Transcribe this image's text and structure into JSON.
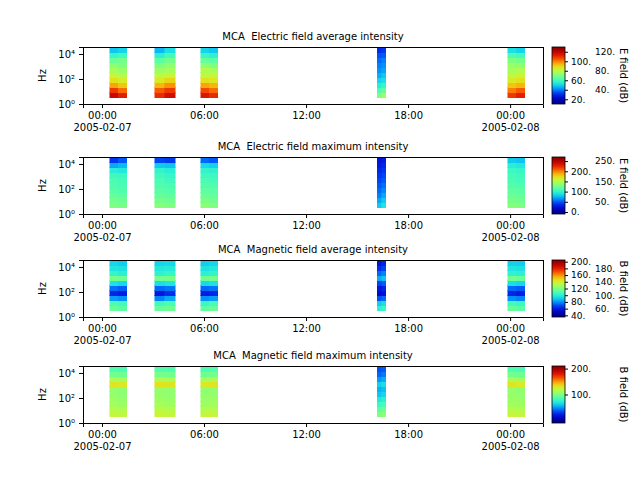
{
  "chart_data": [
    {
      "type": "heatmap",
      "title": "MCA  Electric field average intensity",
      "y_label": "Hz",
      "log": "y",
      "xlim": [
        "2005-02-06T22:53",
        "2005-02-08T01:56"
      ],
      "xticks": [
        {
          "value": "2005-02-07T00:00",
          "label": "00:00\n2005-02-07"
        },
        {
          "value": "2005-02-07T06:00",
          "label": "06:00"
        },
        {
          "value": "2005-02-07T12:00",
          "label": "12:00"
        },
        {
          "value": "2005-02-07T18:00",
          "label": "18:00"
        },
        {
          "value": "2005-02-08T00:00",
          "label": "00:00\n2005-02-08"
        }
      ],
      "ylim": [
        1,
        36000
      ],
      "yticks": [
        {
          "value": 1,
          "label": "10⁰"
        },
        {
          "value": 100,
          "label": "10²"
        },
        {
          "value": 10000,
          "label": "10⁴"
        }
      ],
      "x_bins": [
        [
          "2005-02-07T00:28",
          "2005-02-07T00:58"
        ],
        [
          "2005-02-07T00:58",
          "2005-02-07T01:28"
        ],
        [
          "2005-02-07T03:06",
          "2005-02-07T03:42"
        ],
        [
          "2005-02-07T03:42",
          "2005-02-07T04:18"
        ],
        [
          "2005-02-07T05:48",
          "2005-02-07T06:18"
        ],
        [
          "2005-02-07T06:18",
          "2005-02-07T06:48"
        ],
        [
          "2005-02-07T16:12",
          "2005-02-07T16:27"
        ],
        [
          "2005-02-07T16:27",
          "2005-02-07T16:42"
        ],
        [
          "2005-02-07T23:52",
          "2005-02-08T00:22"
        ],
        [
          "2005-02-08T00:22",
          "2005-02-08T00:52"
        ]
      ],
      "y_bins": [
        3.16,
        7.94,
        20,
        50.1,
        126,
        316,
        794,
        2000,
        5010,
        12600,
        31600
      ],
      "cells": [
        [
          118,
          108,
          96,
          88,
          82,
          76,
          72,
          66,
          58,
          48
        ],
        [
          112,
          102,
          92,
          85,
          78,
          74,
          70,
          68,
          60,
          50
        ],
        [
          110,
          104,
          94,
          86,
          80,
          74,
          70,
          64,
          56,
          46
        ],
        [
          116,
          108,
          98,
          90,
          82,
          76,
          72,
          68,
          60,
          52
        ],
        [
          114,
          106,
          96,
          88,
          80,
          78,
          72,
          66,
          58,
          50
        ],
        [
          110,
          102,
          94,
          86,
          82,
          76,
          70,
          64,
          56,
          48
        ],
        [
          70,
          62,
          55,
          50,
          45,
          42,
          40,
          38,
          35,
          30
        ],
        [
          75,
          65,
          58,
          52,
          48,
          44,
          42,
          40,
          36,
          32
        ],
        [
          108,
          100,
          92,
          86,
          80,
          76,
          74,
          70,
          62,
          52
        ],
        [
          112,
          104,
          94,
          88,
          82,
          78,
          72,
          68,
          60,
          50
        ]
      ],
      "colorbar": {
        "label": "E field (dB)",
        "range": [
          10,
          130
        ],
        "ticks": [
          {
            "value": 20,
            "label": "20."
          },
          {
            "value": 40,
            "label": "40."
          },
          {
            "value": 60,
            "label": "60."
          },
          {
            "value": 80,
            "label": "80."
          },
          {
            "value": 100,
            "label": "100."
          },
          {
            "value": 120,
            "label": "120."
          }
        ]
      }
    },
    {
      "type": "heatmap",
      "title": "MCA  Electric field maximum intensity",
      "y_label": "Hz",
      "log": "y",
      "xlim": [
        "2005-02-06T22:53",
        "2005-02-08T01:56"
      ],
      "xticks": [
        {
          "value": "2005-02-07T00:00",
          "label": "00:00\n2005-02-07"
        },
        {
          "value": "2005-02-07T06:00",
          "label": "06:00"
        },
        {
          "value": "2005-02-07T12:00",
          "label": "12:00"
        },
        {
          "value": "2005-02-07T18:00",
          "label": "18:00"
        },
        {
          "value": "2005-02-08T00:00",
          "label": "00:00\n2005-02-08"
        }
      ],
      "ylim": [
        1,
        36000
      ],
      "yticks": [
        {
          "value": 1,
          "label": "10⁰"
        },
        {
          "value": 100,
          "label": "10²"
        },
        {
          "value": 10000,
          "label": "10⁴"
        }
      ],
      "x_bins": [
        [
          "2005-02-07T00:28",
          "2005-02-07T00:58"
        ],
        [
          "2005-02-07T00:58",
          "2005-02-07T01:28"
        ],
        [
          "2005-02-07T03:06",
          "2005-02-07T03:42"
        ],
        [
          "2005-02-07T03:42",
          "2005-02-07T04:18"
        ],
        [
          "2005-02-07T05:48",
          "2005-02-07T06:18"
        ],
        [
          "2005-02-07T06:18",
          "2005-02-07T06:48"
        ],
        [
          "2005-02-07T16:12",
          "2005-02-07T16:27"
        ],
        [
          "2005-02-07T16:27",
          "2005-02-07T16:42"
        ],
        [
          "2005-02-07T23:52",
          "2005-02-08T00:22"
        ],
        [
          "2005-02-08T00:22",
          "2005-02-08T00:52"
        ]
      ],
      "y_bins": [
        3.16,
        7.94,
        20,
        50.1,
        126,
        316,
        794,
        2000,
        5010,
        12600,
        31600
      ],
      "cells": [
        [
          130,
          125,
          120,
          115,
          112,
          110,
          105,
          95,
          70,
          40
        ],
        [
          128,
          122,
          118,
          112,
          110,
          108,
          104,
          92,
          75,
          50
        ],
        [
          132,
          126,
          120,
          116,
          112,
          110,
          106,
          100,
          80,
          45
        ],
        [
          130,
          124,
          118,
          114,
          110,
          106,
          102,
          96,
          78,
          42
        ],
        [
          134,
          128,
          122,
          118,
          114,
          110,
          106,
          100,
          85,
          55
        ],
        [
          130,
          124,
          120,
          116,
          112,
          108,
          104,
          98,
          82,
          50
        ],
        [
          80,
          70,
          60,
          55,
          50,
          45,
          40,
          35,
          30,
          25
        ],
        [
          90,
          80,
          70,
          62,
          56,
          50,
          45,
          40,
          35,
          30
        ],
        [
          132,
          126,
          122,
          118,
          114,
          110,
          108,
          104,
          95,
          80
        ],
        [
          130,
          124,
          120,
          116,
          112,
          108,
          106,
          102,
          92,
          78
        ]
      ],
      "colorbar": {
        "label": "E field (dB)",
        "range": [
          -10,
          270
        ],
        "ticks": [
          {
            "value": 0,
            "label": "0."
          },
          {
            "value": 50,
            "label": "50."
          },
          {
            "value": 100,
            "label": "100."
          },
          {
            "value": 150,
            "label": "150."
          },
          {
            "value": 200,
            "label": "200."
          },
          {
            "value": 250,
            "label": "250."
          }
        ]
      }
    },
    {
      "type": "heatmap",
      "title": "MCA  Magnetic field average intensity",
      "y_label": "Hz",
      "log": "y",
      "xlim": [
        "2005-02-06T22:53",
        "2005-02-08T01:56"
      ],
      "xticks": [
        {
          "value": "2005-02-07T00:00",
          "label": "00:00\n2005-02-07"
        },
        {
          "value": "2005-02-07T06:00",
          "label": "06:00"
        },
        {
          "value": "2005-02-07T12:00",
          "label": "12:00"
        },
        {
          "value": "2005-02-07T18:00",
          "label": "18:00"
        },
        {
          "value": "2005-02-08T00:00",
          "label": "00:00\n2005-02-08"
        }
      ],
      "ylim": [
        1,
        36000
      ],
      "yticks": [
        {
          "value": 1,
          "label": "10⁰"
        },
        {
          "value": 100,
          "label": "10²"
        },
        {
          "value": 10000,
          "label": "10⁴"
        }
      ],
      "x_bins": [
        [
          "2005-02-07T00:28",
          "2005-02-07T00:58"
        ],
        [
          "2005-02-07T00:58",
          "2005-02-07T01:28"
        ],
        [
          "2005-02-07T03:06",
          "2005-02-07T03:42"
        ],
        [
          "2005-02-07T03:42",
          "2005-02-07T04:18"
        ],
        [
          "2005-02-07T05:48",
          "2005-02-07T06:18"
        ],
        [
          "2005-02-07T06:18",
          "2005-02-07T06:48"
        ],
        [
          "2005-02-07T16:12",
          "2005-02-07T16:27"
        ],
        [
          "2005-02-07T16:27",
          "2005-02-07T16:42"
        ],
        [
          "2005-02-07T23:52",
          "2005-02-08T00:22"
        ],
        [
          "2005-02-08T00:22",
          "2005-02-08T00:52"
        ]
      ],
      "y_bins": [
        3.16,
        7.94,
        20,
        50.1,
        126,
        316,
        794,
        2000,
        5010,
        12600,
        31600
      ],
      "cells": [
        [
          115,
          108,
          82,
          62,
          75,
          95,
          118,
          102,
          96,
          92
        ],
        [
          112,
          106,
          80,
          60,
          72,
          92,
          116,
          100,
          95,
          90
        ],
        [
          114,
          105,
          78,
          58,
          74,
          94,
          117,
          101,
          97,
          92
        ],
        [
          116,
          108,
          84,
          64,
          76,
          96,
          118,
          103,
          98,
          93
        ],
        [
          113,
          104,
          80,
          60,
          74,
          93,
          116,
          100,
          95,
          90
        ],
        [
          115,
          107,
          82,
          62,
          76,
          95,
          118,
          102,
          97,
          92
        ],
        [
          100,
          90,
          70,
          52,
          58,
          68,
          84,
          74,
          64,
          58
        ],
        [
          104,
          94,
          74,
          56,
          62,
          72,
          88,
          78,
          68,
          62
        ],
        [
          114,
          106,
          80,
          62,
          74,
          94,
          117,
          101,
          96,
          91
        ],
        [
          112,
          104,
          78,
          60,
          72,
          92,
          115,
          100,
          95,
          90
        ]
      ],
      "colorbar": {
        "label": "B field (dB)",
        "range": [
          35,
          205
        ],
        "ticks": [
          {
            "value": 40,
            "label": "40."
          },
          {
            "value": 60,
            "label": "60."
          },
          {
            "value": 80,
            "label": "80."
          },
          {
            "value": 100,
            "label": "100."
          },
          {
            "value": 120,
            "label": "120."
          },
          {
            "value": 140,
            "label": "140."
          },
          {
            "value": 160,
            "label": "160."
          },
          {
            "value": 180,
            "label": "180."
          },
          {
            "value": 200,
            "label": "200."
          }
        ]
      }
    },
    {
      "type": "heatmap",
      "title": "MCA  Magnetic field maximum intensity",
      "y_label": "Hz",
      "log": "y",
      "xlim": [
        "2005-02-06T22:53",
        "2005-02-08T01:56"
      ],
      "xticks": [
        {
          "value": "2005-02-07T00:00",
          "label": "00:00\n2005-02-07"
        },
        {
          "value": "2005-02-07T06:00",
          "label": "06:00"
        },
        {
          "value": "2005-02-07T12:00",
          "label": "12:00"
        },
        {
          "value": "2005-02-07T18:00",
          "label": "18:00"
        },
        {
          "value": "2005-02-08T00:00",
          "label": "00:00\n2005-02-08"
        }
      ],
      "ylim": [
        1,
        36000
      ],
      "yticks": [
        {
          "value": 1,
          "label": "10⁰"
        },
        {
          "value": 100,
          "label": "10²"
        },
        {
          "value": 10000,
          "label": "10⁴"
        }
      ],
      "x_bins": [
        [
          "2005-02-07T00:28",
          "2005-02-07T00:58"
        ],
        [
          "2005-02-07T00:58",
          "2005-02-07T01:28"
        ],
        [
          "2005-02-07T03:06",
          "2005-02-07T03:42"
        ],
        [
          "2005-02-07T03:42",
          "2005-02-07T04:18"
        ],
        [
          "2005-02-07T05:48",
          "2005-02-07T06:18"
        ],
        [
          "2005-02-07T06:18",
          "2005-02-07T06:48"
        ],
        [
          "2005-02-07T16:12",
          "2005-02-07T16:27"
        ],
        [
          "2005-02-07T16:27",
          "2005-02-07T16:42"
        ],
        [
          "2005-02-07T23:52",
          "2005-02-08T00:22"
        ],
        [
          "2005-02-08T00:22",
          "2005-02-08T00:52"
        ]
      ],
      "y_bins": [
        3.16,
        7.94,
        20,
        50.1,
        126,
        316,
        794,
        2000,
        5010,
        12600,
        31600
      ],
      "cells": [
        [
          120,
          116,
          110,
          108,
          106,
          105,
          132,
          112,
          96,
          86
        ],
        [
          118,
          114,
          108,
          106,
          104,
          104,
          130,
          110,
          95,
          85
        ],
        [
          122,
          117,
          111,
          108,
          106,
          106,
          133,
          113,
          97,
          87
        ],
        [
          120,
          115,
          110,
          107,
          105,
          105,
          131,
          111,
          96,
          86
        ],
        [
          119,
          115,
          109,
          107,
          105,
          104,
          130,
          111,
          95,
          85
        ],
        [
          121,
          116,
          110,
          108,
          106,
          105,
          132,
          112,
          97,
          87
        ],
        [
          100,
          90,
          80,
          70,
          60,
          55,
          62,
          50,
          40,
          35
        ],
        [
          104,
          94,
          84,
          74,
          64,
          58,
          66,
          54,
          44,
          38
        ],
        [
          121,
          116,
          110,
          108,
          106,
          105,
          131,
          112,
          96,
          86
        ],
        [
          119,
          114,
          109,
          107,
          105,
          104,
          129,
          110,
          95,
          85
        ]
      ],
      "colorbar": {
        "label": "B field (dB)",
        "range": [
          -10,
          210
        ],
        "ticks": [
          {
            "value": 100,
            "label": "100."
          },
          {
            "value": 200,
            "label": "200."
          }
        ]
      }
    }
  ]
}
